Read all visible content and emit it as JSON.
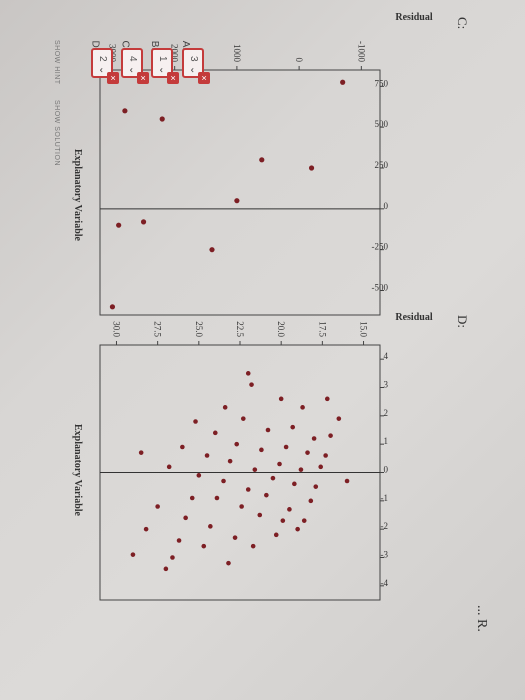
{
  "header": {
    "partial_title": "... R."
  },
  "plots": {
    "C": {
      "label": "C:",
      "xlabel": "Explanatory Variable",
      "ylabel": "Residual",
      "xticks": [
        "-1000",
        "0",
        "1000",
        "2000",
        "3000"
      ],
      "yticks": [
        "750",
        "500",
        "250",
        "0",
        "-250",
        "-500"
      ]
    },
    "D": {
      "label": "D:",
      "xlabel": "Explanatory Variable",
      "ylabel": "Residual",
      "xticks": [
        "15.0",
        "17.5",
        "20.0",
        "22.5",
        "25.0",
        "27.5",
        "30.0"
      ],
      "yticks": [
        "4",
        "3",
        "2",
        "1",
        "0",
        "-1",
        "-2",
        "-3",
        "-4"
      ]
    }
  },
  "answers": [
    {
      "letter": "A:",
      "value": "3"
    },
    {
      "letter": "B:",
      "value": "1"
    },
    {
      "letter": "C:",
      "value": "4"
    },
    {
      "letter": "D:",
      "value": "2"
    }
  ],
  "actions": {
    "show_hint": "SHOW HINT",
    "show_solution": "SHOW SOLUTION"
  },
  "chart_data": [
    {
      "type": "scatter",
      "xlabel": "Explanatory Variable",
      "ylabel": "Residual",
      "xlim": [
        -1300,
        3200
      ],
      "ylim": [
        -650,
        850
      ],
      "points": [
        [
          -700,
          775
        ],
        [
          -200,
          250
        ],
        [
          600,
          300
        ],
        [
          1000,
          50
        ],
        [
          1400,
          -250
        ],
        [
          2200,
          550
        ],
        [
          2800,
          600
        ],
        [
          3000,
          -600
        ],
        [
          2900,
          -100
        ],
        [
          2500,
          -80
        ]
      ]
    },
    {
      "type": "scatter",
      "xlabel": "Explanatory Variable",
      "ylabel": "Residual",
      "xlim": [
        14,
        31
      ],
      "ylim": [
        -4.5,
        4.5
      ],
      "points": [
        [
          16.5,
          1.9
        ],
        [
          17.0,
          1.3
        ],
        [
          17.3,
          0.6
        ],
        [
          17.6,
          0.2
        ],
        [
          17.9,
          -0.5
        ],
        [
          18.2,
          -1.0
        ],
        [
          18.6,
          -1.7
        ],
        [
          19.0,
          -2.0
        ],
        [
          17.2,
          2.6
        ],
        [
          18.0,
          1.2
        ],
        [
          18.4,
          0.7
        ],
        [
          18.8,
          0.1
        ],
        [
          19.2,
          -0.4
        ],
        [
          19.5,
          -1.3
        ],
        [
          19.9,
          -1.7
        ],
        [
          20.3,
          -2.2
        ],
        [
          18.7,
          2.3
        ],
        [
          19.3,
          1.6
        ],
        [
          19.7,
          0.9
        ],
        [
          20.1,
          0.3
        ],
        [
          20.5,
          -0.2
        ],
        [
          20.9,
          -0.8
        ],
        [
          21.3,
          -1.5
        ],
        [
          21.7,
          -2.6
        ],
        [
          20.0,
          2.6
        ],
        [
          20.8,
          1.5
        ],
        [
          21.2,
          0.8
        ],
        [
          21.6,
          0.1
        ],
        [
          22.0,
          -0.6
        ],
        [
          22.4,
          -1.2
        ],
        [
          22.8,
          -2.3
        ],
        [
          23.2,
          -3.2
        ],
        [
          21.8,
          3.1
        ],
        [
          22.3,
          1.9
        ],
        [
          22.7,
          1.0
        ],
        [
          23.1,
          0.4
        ],
        [
          23.5,
          -0.3
        ],
        [
          23.9,
          -0.9
        ],
        [
          24.3,
          -1.9
        ],
        [
          24.7,
          -2.6
        ],
        [
          23.4,
          2.3
        ],
        [
          24.0,
          1.4
        ],
        [
          24.5,
          0.6
        ],
        [
          25.0,
          -0.1
        ],
        [
          25.4,
          -0.9
        ],
        [
          25.8,
          -1.6
        ],
        [
          26.2,
          -2.4
        ],
        [
          26.6,
          -3.0
        ],
        [
          25.2,
          1.8
        ],
        [
          26.0,
          0.9
        ],
        [
          26.8,
          0.2
        ],
        [
          27.5,
          -1.2
        ],
        [
          28.2,
          -2.0
        ],
        [
          29.0,
          -2.9
        ],
        [
          28.5,
          0.7
        ],
        [
          27.0,
          -3.4
        ],
        [
          16.0,
          -0.3
        ],
        [
          22.0,
          3.5
        ]
      ]
    }
  ]
}
